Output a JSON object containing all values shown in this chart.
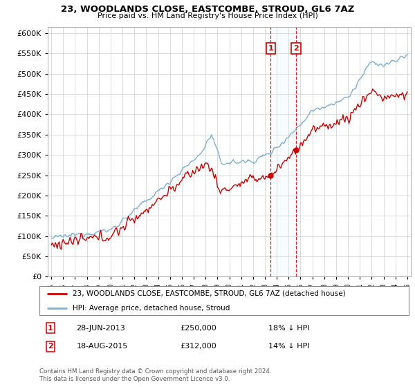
{
  "title": "23, WOODLANDS CLOSE, EASTCOMBE, STROUD, GL6 7AZ",
  "subtitle": "Price paid vs. HM Land Registry's House Price Index (HPI)",
  "ytick_values": [
    0,
    50000,
    100000,
    150000,
    200000,
    250000,
    300000,
    350000,
    400000,
    450000,
    500000,
    550000,
    600000
  ],
  "ylim": [
    0,
    615000
  ],
  "xlim_start": 1994.7,
  "xlim_end": 2025.3,
  "legend_line1": "23, WOODLANDS CLOSE, EASTCOMBE, STROUD, GL6 7AZ (detached house)",
  "legend_line2": "HPI: Average price, detached house, Stroud",
  "transaction1_date": "28-JUN-2013",
  "transaction1_price": "£250,000",
  "transaction1_pct": "18% ↓ HPI",
  "transaction1_year": 2013.49,
  "transaction1_value": 250000,
  "transaction2_date": "18-AUG-2015",
  "transaction2_price": "£312,000",
  "transaction2_pct": "14% ↓ HPI",
  "transaction2_year": 2015.63,
  "transaction2_value": 312000,
  "footnote": "Contains HM Land Registry data © Crown copyright and database right 2024.\nThis data is licensed under the Open Government Licence v3.0.",
  "hpi_color": "#7bafd4",
  "price_color": "#cc0000",
  "bg_color": "#ffffff",
  "grid_color": "#cccccc",
  "shade_color": "#ddeeff"
}
